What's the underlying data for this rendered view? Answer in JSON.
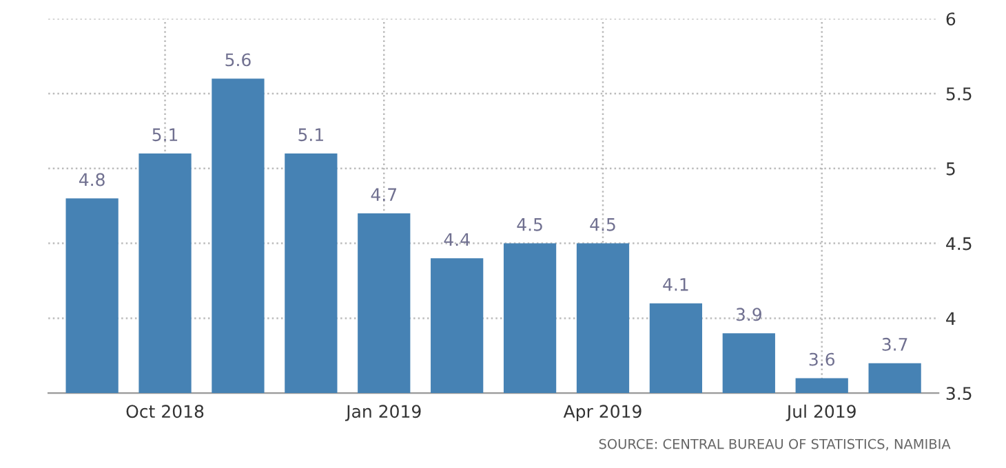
{
  "chart_data": {
    "type": "bar",
    "categories": [
      null,
      "Oct 2018",
      null,
      null,
      "Jan 2019",
      null,
      null,
      "Apr 2019",
      null,
      null,
      "Jul 2019",
      null
    ],
    "values": [
      4.8,
      5.1,
      5.6,
      5.1,
      4.7,
      4.4,
      4.5,
      4.5,
      4.1,
      3.9,
      3.6,
      3.7
    ],
    "color": "#4682b4",
    "ylim": [
      3.5,
      6
    ],
    "yticks": [
      3.5,
      4,
      4.5,
      5,
      5.5,
      6
    ],
    "grid": true,
    "data_labels": true,
    "annotations": [
      "SOURCE: CENTRAL BUREAU OF STATISTICS, NAMIBIA"
    ]
  }
}
